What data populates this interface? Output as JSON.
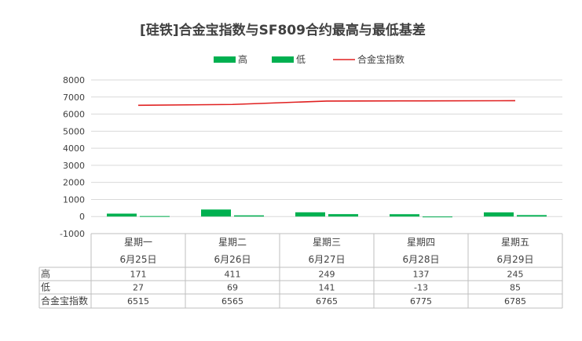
{
  "chart_data": {
    "type": "bar",
    "title": "[硅铁]合金宝指数与SF809合约最高与最低基差",
    "categories": [
      "星期一",
      "星期二",
      "星期三",
      "星期四",
      "星期五"
    ],
    "dates": [
      "6月25日",
      "6月26日",
      "6月27日",
      "6月28日",
      "6月29日"
    ],
    "ylim": [
      -1000,
      8000
    ],
    "yticks": [
      -1000,
      0,
      1000,
      2000,
      3000,
      4000,
      5000,
      6000,
      7000,
      8000
    ],
    "grid": true,
    "legend_position": "top",
    "series": [
      {
        "name": "高",
        "kind": "bar",
        "color": "#00b050",
        "values": [
          171,
          411,
          249,
          137,
          245
        ]
      },
      {
        "name": "低",
        "kind": "bar",
        "color": "#00b050",
        "values": [
          27,
          69,
          141,
          -13,
          85
        ]
      },
      {
        "name": "合金宝指数",
        "kind": "line",
        "color": "#e02020",
        "values": [
          6515,
          6565,
          6765,
          6775,
          6785
        ]
      }
    ]
  }
}
